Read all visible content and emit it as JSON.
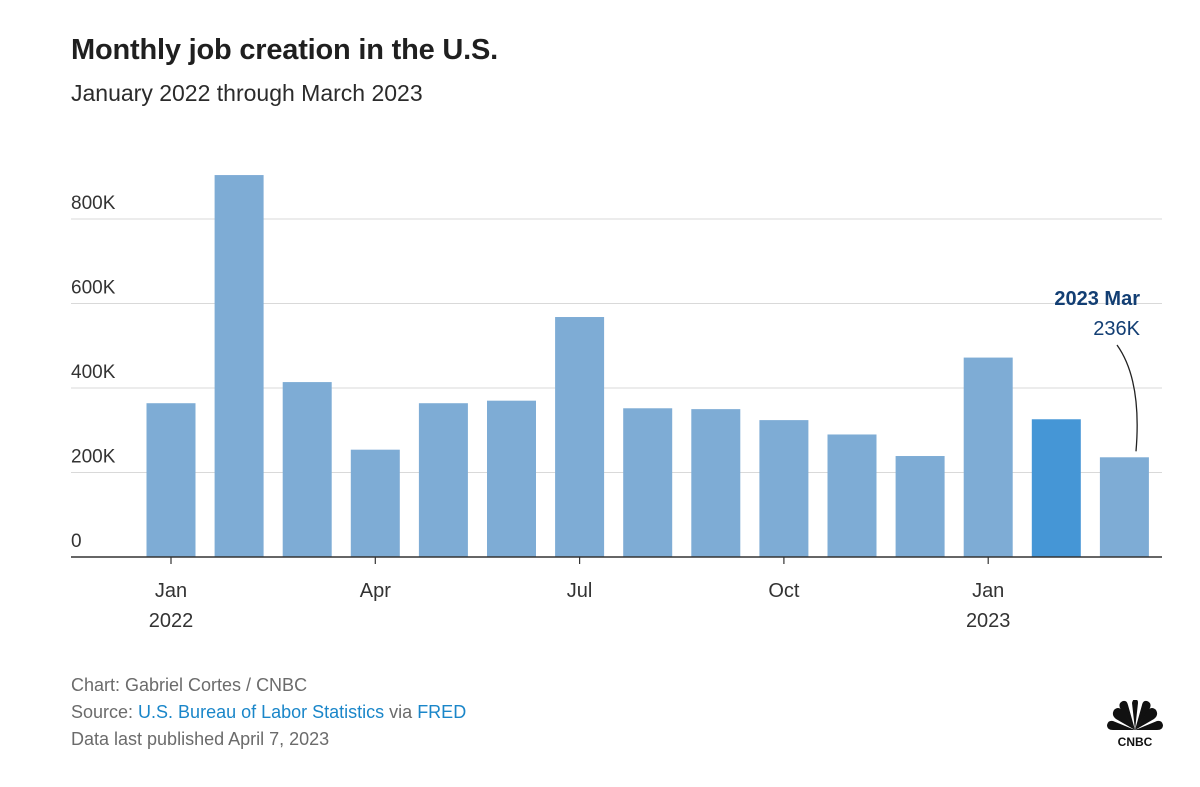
{
  "title": "Monthly job creation in the U.S.",
  "subtitle": "January 2022 through March 2023",
  "footer": {
    "credit": "Chart: Gabriel Cortes / CNBC",
    "source_prefix": "Source: ",
    "source_link": "U.S. Bureau of Labor Statistics",
    "source_via": " via ",
    "source_link2": "FRED",
    "published": "Data last published April 7, 2023"
  },
  "logo": {
    "text": "CNBC",
    "icon": "peacock-logo-icon"
  },
  "colors": {
    "bar": "#7eacd5",
    "highlight": "#4596d6",
    "annotation": "#123e73",
    "grid": "#d9d9d9",
    "axis": "#333333"
  },
  "chart_data": {
    "type": "bar",
    "title": "Monthly job creation in the U.S.",
    "subtitle": "January 2022 through March 2023",
    "categories": [
      "2022-01",
      "2022-02",
      "2022-03",
      "2022-04",
      "2022-05",
      "2022-06",
      "2022-07",
      "2022-08",
      "2022-09",
      "2022-10",
      "2022-11",
      "2022-12",
      "2023-01",
      "2023-02",
      "2023-03"
    ],
    "values": [
      364000,
      904000,
      414000,
      254000,
      364000,
      370000,
      568000,
      352000,
      350000,
      324000,
      290000,
      239000,
      472000,
      326000,
      236000
    ],
    "highlighted_index": 13,
    "ylim": [
      0,
      900000
    ],
    "yticks": [
      {
        "value": 0,
        "label": "0"
      },
      {
        "value": 200000,
        "label": "200K"
      },
      {
        "value": 400000,
        "label": "400K"
      },
      {
        "value": 600000,
        "label": "600K"
      },
      {
        "value": 800000,
        "label": "800K"
      }
    ],
    "xticks": [
      {
        "index": 0,
        "label": "Jan",
        "sublabel": "2022"
      },
      {
        "index": 3,
        "label": "Apr",
        "sublabel": ""
      },
      {
        "index": 6,
        "label": "Jul",
        "sublabel": ""
      },
      {
        "index": 9,
        "label": "Oct",
        "sublabel": ""
      },
      {
        "index": 12,
        "label": "Jan",
        "sublabel": "2023"
      }
    ],
    "annotation": {
      "index": 14,
      "label": "2023 Mar",
      "value_label": "236K"
    },
    "grid": true,
    "xlabel": "",
    "ylabel": ""
  }
}
